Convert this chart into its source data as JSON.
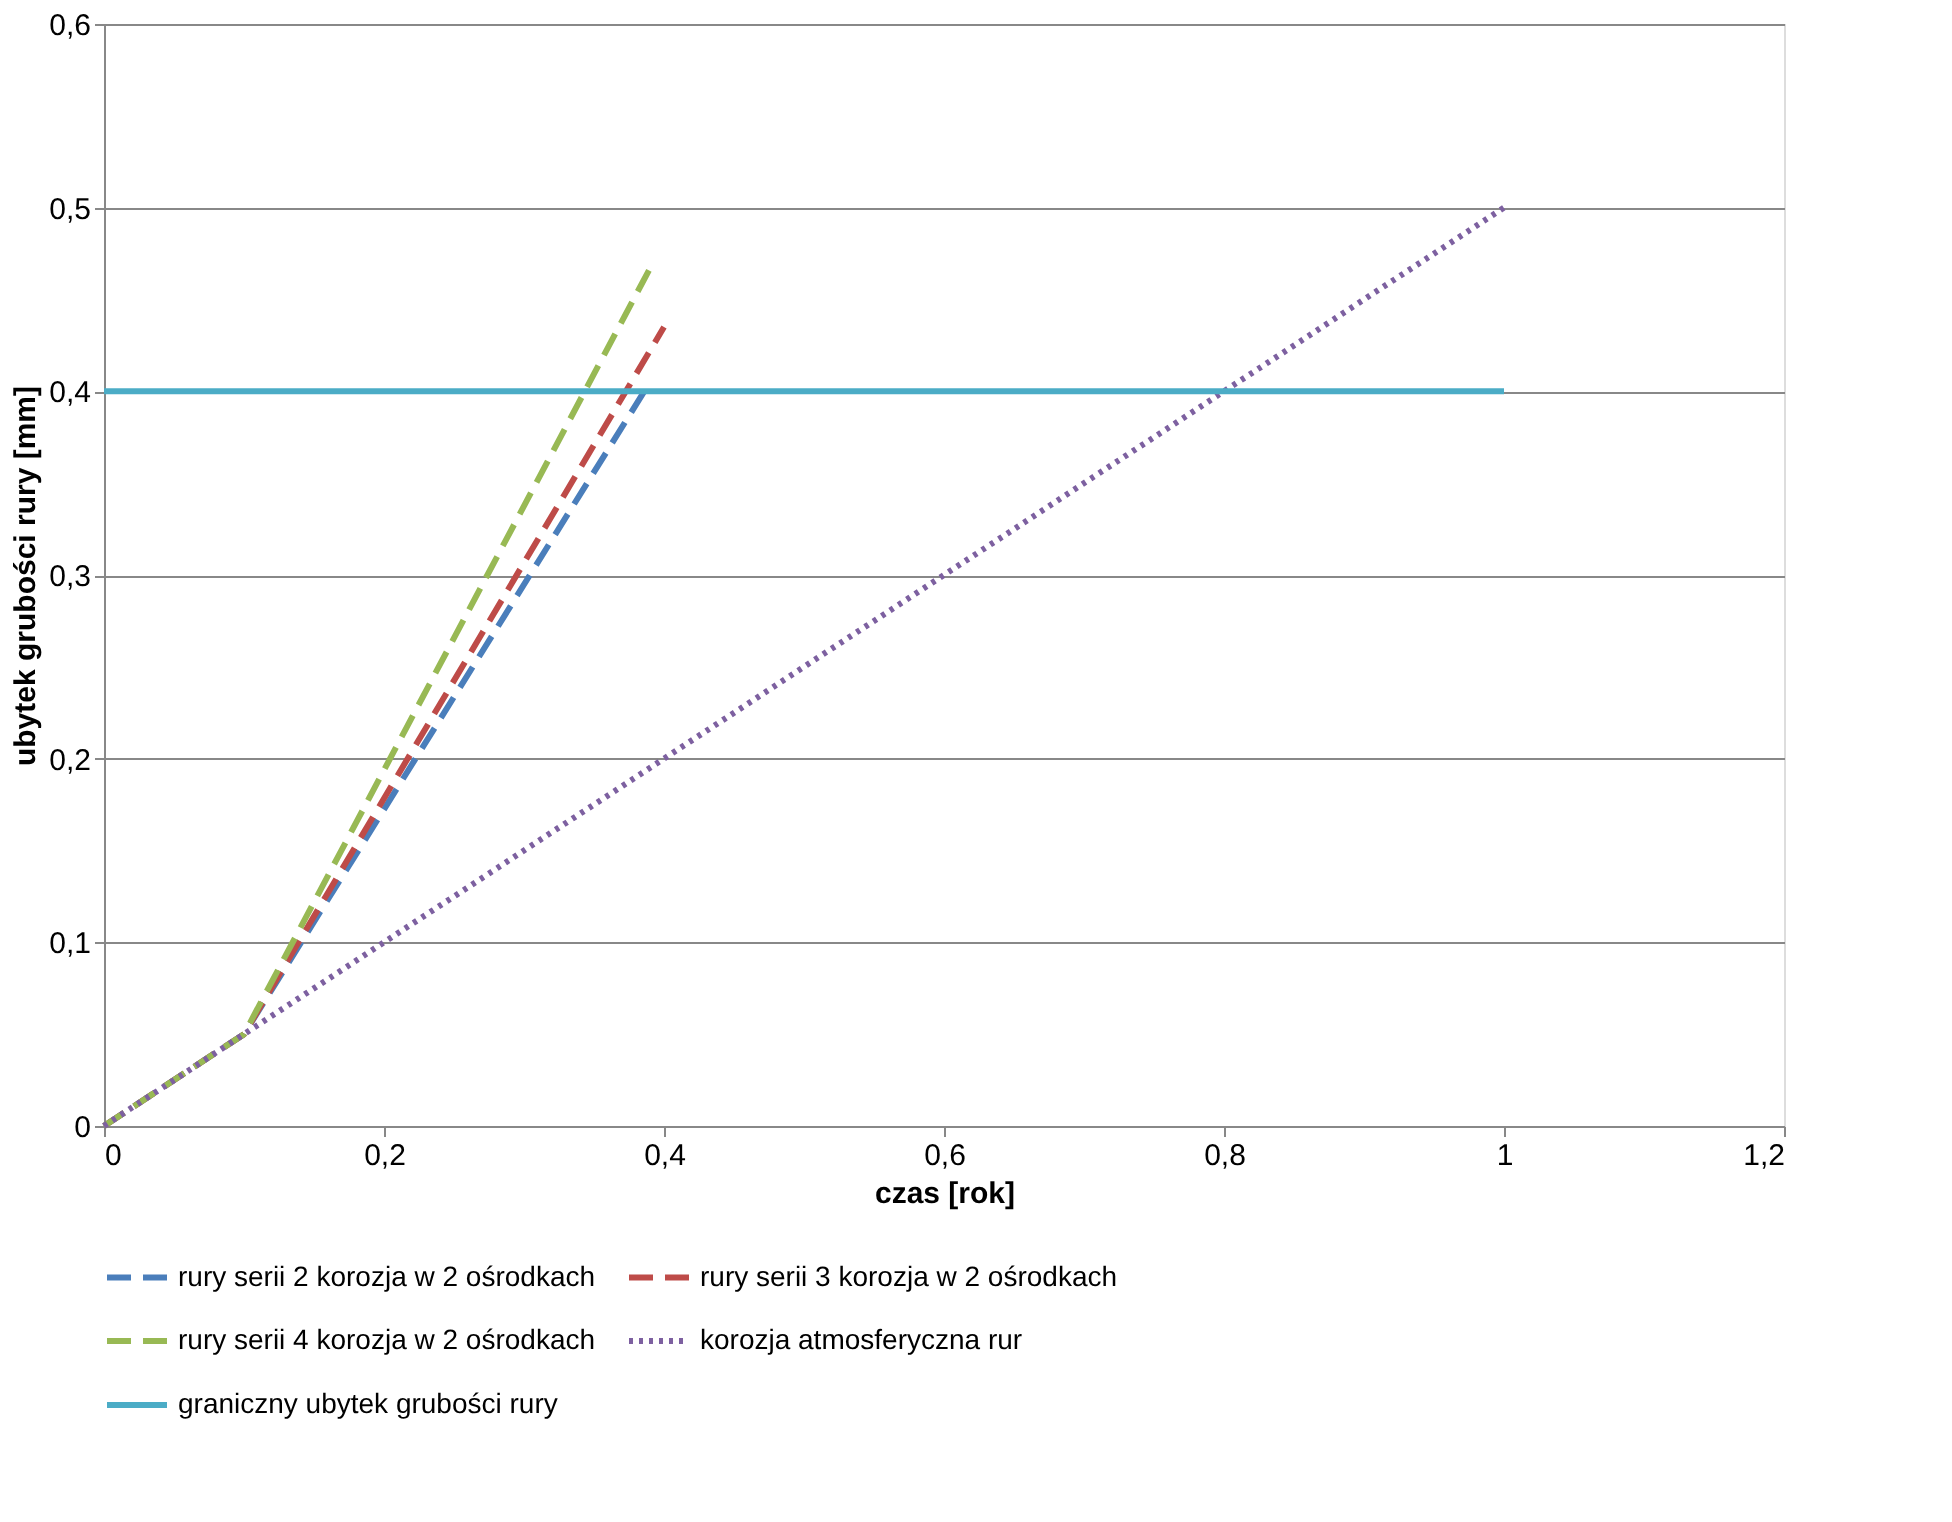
{
  "chart_data": {
    "type": "line",
    "xlabel": "czas [rok]",
    "ylabel": "ubytek grubości rury [mm]",
    "xlim": [
      0,
      1.2
    ],
    "ylim": [
      0,
      0.6
    ],
    "xticks": [
      0,
      {
        "value": 0.2,
        "label": "0,2"
      },
      {
        "value": 0.4,
        "label": "0,4"
      },
      {
        "value": 0.6,
        "label": "0,6"
      },
      {
        "value": 0.8,
        "label": "0,8"
      },
      1,
      {
        "value": 1.2,
        "label": "1,2"
      }
    ],
    "yticks": [
      0,
      {
        "value": 0.1,
        "label": "0,1"
      },
      {
        "value": 0.2,
        "label": "0,2"
      },
      {
        "value": 0.3,
        "label": "0,3"
      },
      {
        "value": 0.4,
        "label": "0,4"
      },
      {
        "value": 0.5,
        "label": "0,5"
      },
      {
        "value": 0.6,
        "label": "0,6"
      }
    ],
    "grid": "y",
    "legend": "bottom",
    "marker": "none",
    "series": [
      {
        "name": "rury serii 2 korozja w 2 ośrodkach",
        "color": "#4a7ebb",
        "line_style": "dashed",
        "x": [
          0,
          0.1,
          0.39
        ],
        "values": [
          0,
          0.05,
          0.405
        ]
      },
      {
        "name": "rury serii 3 korozja w 2 ośrodkach",
        "color": "#be4b48",
        "line_style": "dashed",
        "x": [
          0,
          0.1,
          0.4
        ],
        "values": [
          0,
          0.05,
          0.435
        ]
      },
      {
        "name": "rury serii 4 korozja w 2 ośrodkach",
        "color": "#98b954",
        "line_style": "dashed",
        "x": [
          0,
          0.1,
          0.39
        ],
        "values": [
          0,
          0.05,
          0.467
        ]
      },
      {
        "name": "korozja atmosferyczna rur",
        "color": "#7d60a0",
        "line_style": "dotted",
        "x": [
          0,
          0.1,
          1
        ],
        "values": [
          0,
          0.05,
          0.5
        ]
      },
      {
        "name": "graniczny ubytek grubości rury",
        "color": "#4bacc6",
        "line_style": "solid",
        "x": [
          0,
          1
        ],
        "values": [
          0.4,
          0.4
        ]
      }
    ]
  }
}
